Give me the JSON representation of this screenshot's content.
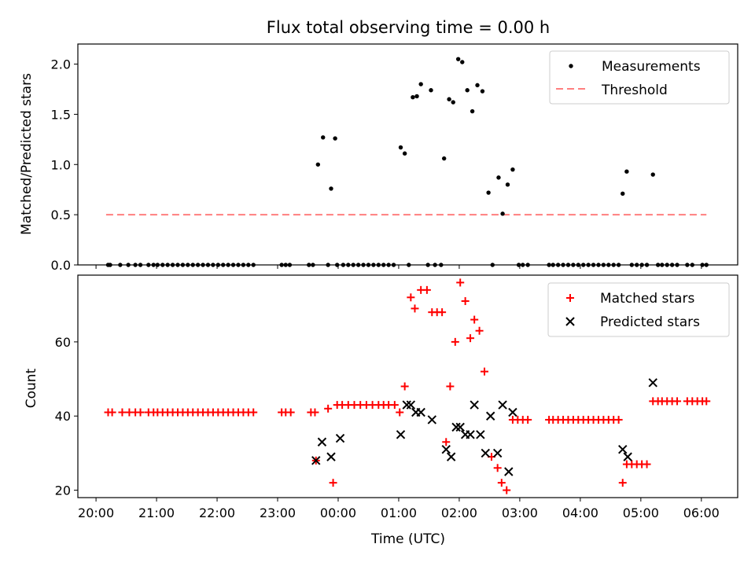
{
  "colors": {
    "measurement": "#000000",
    "threshold": "#ff7f7f",
    "matched": "#ff0000",
    "predicted": "#000000"
  },
  "chart_data": [
    {
      "type": "scatter",
      "title": "Flux total observing time = 0.00 h",
      "xlabel": "",
      "ylabel": "Matched/Predicted stars",
      "xlim": [
        "20:00",
        "06:30"
      ],
      "ylim": [
        0,
        2.2
      ],
      "yticks": [
        0.0,
        0.5,
        1.0,
        1.5,
        2.0
      ],
      "ytick_labels": [
        "0.0",
        "0.5",
        "1.0",
        "1.5",
        "2.0"
      ],
      "legend_position": "top-right",
      "legend": [
        "Measurements",
        "Threshold"
      ],
      "threshold": {
        "value": 0.5,
        "x_start": "20:10",
        "x_end": "06:05"
      },
      "series": [
        {
          "name": "Measurements",
          "points": [
            [
              "20:12",
              0
            ],
            [
              "20:14",
              0
            ],
            [
              "20:24",
              0
            ],
            [
              "20:32",
              0
            ],
            [
              "20:39",
              0
            ],
            [
              "20:44",
              0
            ],
            [
              "20:52",
              0
            ],
            [
              "20:57",
              0
            ],
            [
              "21:01",
              0
            ],
            [
              "21:06",
              0
            ],
            [
              "21:11",
              0
            ],
            [
              "21:16",
              0
            ],
            [
              "21:21",
              0
            ],
            [
              "21:26",
              0
            ],
            [
              "21:31",
              0
            ],
            [
              "21:36",
              0
            ],
            [
              "21:41",
              0
            ],
            [
              "21:46",
              0
            ],
            [
              "21:51",
              0
            ],
            [
              "21:56",
              0
            ],
            [
              "22:01",
              0
            ],
            [
              "22:06",
              0
            ],
            [
              "22:11",
              0
            ],
            [
              "22:16",
              0
            ],
            [
              "22:21",
              0
            ],
            [
              "22:26",
              0
            ],
            [
              "22:31",
              0
            ],
            [
              "22:36",
              0
            ],
            [
              "23:04",
              0
            ],
            [
              "23:08",
              0
            ],
            [
              "23:12",
              0
            ],
            [
              "23:31",
              0
            ],
            [
              "23:35",
              0
            ],
            [
              "23:40",
              1.0
            ],
            [
              "23:45",
              1.27
            ],
            [
              "23:50",
              0
            ],
            [
              "23:53",
              0.76
            ],
            [
              "23:57",
              1.26
            ],
            [
              "23:59",
              0
            ],
            [
              "00:05",
              0
            ],
            [
              "00:10",
              0
            ],
            [
              "00:15",
              0
            ],
            [
              "00:20",
              0
            ],
            [
              "00:25",
              0
            ],
            [
              "00:30",
              0
            ],
            [
              "00:35",
              0
            ],
            [
              "00:40",
              0
            ],
            [
              "00:45",
              0
            ],
            [
              "00:50",
              0
            ],
            [
              "00:55",
              0
            ],
            [
              "01:02",
              1.17
            ],
            [
              "01:06",
              1.11
            ],
            [
              "01:10",
              0
            ],
            [
              "01:14",
              1.67
            ],
            [
              "01:18",
              1.68
            ],
            [
              "01:22",
              1.8
            ],
            [
              "01:29",
              0
            ],
            [
              "01:32",
              1.74
            ],
            [
              "01:36",
              0
            ],
            [
              "01:42",
              0
            ],
            [
              "01:45",
              1.06
            ],
            [
              "01:50",
              1.65
            ],
            [
              "01:54",
              1.62
            ],
            [
              "01:59",
              2.05
            ],
            [
              "02:03",
              2.02
            ],
            [
              "02:08",
              1.74
            ],
            [
              "02:13",
              1.53
            ],
            [
              "02:18",
              1.79
            ],
            [
              "02:23",
              1.73
            ],
            [
              "02:29",
              0.72
            ],
            [
              "02:33",
              0
            ],
            [
              "02:39",
              0.87
            ],
            [
              "02:43",
              0.51
            ],
            [
              "02:48",
              0.8
            ],
            [
              "02:53",
              0.95
            ],
            [
              "02:59",
              0
            ],
            [
              "03:03",
              0
            ],
            [
              "03:08",
              0
            ],
            [
              "03:29",
              0
            ],
            [
              "03:33",
              0
            ],
            [
              "03:38",
              0
            ],
            [
              "03:43",
              0
            ],
            [
              "03:48",
              0
            ],
            [
              "03:53",
              0
            ],
            [
              "03:58",
              0
            ],
            [
              "04:03",
              0
            ],
            [
              "04:08",
              0
            ],
            [
              "04:13",
              0
            ],
            [
              "04:18",
              0
            ],
            [
              "04:23",
              0
            ],
            [
              "04:28",
              0
            ],
            [
              "04:33",
              0
            ],
            [
              "04:38",
              0
            ],
            [
              "04:42",
              0.71
            ],
            [
              "04:46",
              0.93
            ],
            [
              "04:51",
              0
            ],
            [
              "04:56",
              0
            ],
            [
              "05:01",
              0
            ],
            [
              "05:06",
              0
            ],
            [
              "05:12",
              0.9
            ],
            [
              "05:17",
              0
            ],
            [
              "05:21",
              0
            ],
            [
              "05:26",
              0
            ],
            [
              "05:31",
              0
            ],
            [
              "05:36",
              0
            ],
            [
              "05:46",
              0
            ],
            [
              "05:51",
              0
            ],
            [
              "06:01",
              0
            ],
            [
              "06:05",
              0
            ]
          ]
        }
      ]
    },
    {
      "type": "scatter",
      "title": "",
      "xlabel": "Time (UTC)",
      "ylabel": "Count",
      "xlim": [
        "20:00",
        "06:30"
      ],
      "ylim": [
        18,
        78
      ],
      "yticks": [
        20,
        40,
        60
      ],
      "ytick_labels": [
        "20",
        "40",
        "60"
      ],
      "xticks": [
        "20:00",
        "21:00",
        "22:00",
        "23:00",
        "00:00",
        "01:00",
        "02:00",
        "03:00",
        "04:00",
        "05:00",
        "06:00"
      ],
      "legend_position": "top-right",
      "legend": [
        "Matched stars",
        "Predicted stars"
      ],
      "series": [
        {
          "name": "Matched stars",
          "points": [
            [
              "20:12",
              41
            ],
            [
              "20:16",
              41
            ],
            [
              "20:26",
              41
            ],
            [
              "20:33",
              41
            ],
            [
              "20:39",
              41
            ],
            [
              "20:44",
              41
            ],
            [
              "20:52",
              41
            ],
            [
              "20:57",
              41
            ],
            [
              "21:01",
              41
            ],
            [
              "21:06",
              41
            ],
            [
              "21:11",
              41
            ],
            [
              "21:16",
              41
            ],
            [
              "21:21",
              41
            ],
            [
              "21:26",
              41
            ],
            [
              "21:31",
              41
            ],
            [
              "21:36",
              41
            ],
            [
              "21:41",
              41
            ],
            [
              "21:46",
              41
            ],
            [
              "21:51",
              41
            ],
            [
              "21:56",
              41
            ],
            [
              "22:01",
              41
            ],
            [
              "22:06",
              41
            ],
            [
              "22:11",
              41
            ],
            [
              "22:16",
              41
            ],
            [
              "22:21",
              41
            ],
            [
              "22:26",
              41
            ],
            [
              "22:31",
              41
            ],
            [
              "22:36",
              41
            ],
            [
              "23:04",
              41
            ],
            [
              "23:08",
              41
            ],
            [
              "23:13",
              41
            ],
            [
              "23:33",
              41
            ],
            [
              "23:37",
              41
            ],
            [
              "23:38",
              28
            ],
            [
              "23:50",
              42
            ],
            [
              "23:55",
              22
            ],
            [
              "23:59",
              43
            ],
            [
              "00:04",
              43
            ],
            [
              "00:10",
              43
            ],
            [
              "00:16",
              43
            ],
            [
              "00:22",
              43
            ],
            [
              "00:28",
              43
            ],
            [
              "00:34",
              43
            ],
            [
              "00:40",
              43
            ],
            [
              "00:45",
              43
            ],
            [
              "00:50",
              43
            ],
            [
              "00:56",
              43
            ],
            [
              "01:01",
              41
            ],
            [
              "01:06",
              48
            ],
            [
              "01:12",
              72
            ],
            [
              "01:16",
              69
            ],
            [
              "01:22",
              74
            ],
            [
              "01:28",
              74
            ],
            [
              "01:33",
              68
            ],
            [
              "01:38",
              68
            ],
            [
              "01:43",
              68
            ],
            [
              "01:47",
              33
            ],
            [
              "01:51",
              48
            ],
            [
              "01:56",
              60
            ],
            [
              "02:01",
              76
            ],
            [
              "02:06",
              71
            ],
            [
              "02:11",
              61
            ],
            [
              "02:15",
              66
            ],
            [
              "02:20",
              63
            ],
            [
              "02:25",
              52
            ],
            [
              "02:32",
              29
            ],
            [
              "02:38",
              26
            ],
            [
              "02:42",
              22
            ],
            [
              "02:47",
              20
            ],
            [
              "02:53",
              39
            ],
            [
              "02:58",
              39
            ],
            [
              "03:03",
              39
            ],
            [
              "03:08",
              39
            ],
            [
              "03:29",
              39
            ],
            [
              "03:33",
              39
            ],
            [
              "03:38",
              39
            ],
            [
              "03:43",
              39
            ],
            [
              "03:48",
              39
            ],
            [
              "03:53",
              39
            ],
            [
              "03:58",
              39
            ],
            [
              "04:03",
              39
            ],
            [
              "04:08",
              39
            ],
            [
              "04:13",
              39
            ],
            [
              "04:18",
              39
            ],
            [
              "04:23",
              39
            ],
            [
              "04:28",
              39
            ],
            [
              "04:33",
              39
            ],
            [
              "04:38",
              39
            ],
            [
              "04:42",
              22
            ],
            [
              "04:46",
              27
            ],
            [
              "04:51",
              27
            ],
            [
              "04:56",
              27
            ],
            [
              "05:01",
              27
            ],
            [
              "05:06",
              27
            ],
            [
              "05:12",
              44
            ],
            [
              "05:17",
              44
            ],
            [
              "05:21",
              44
            ],
            [
              "05:26",
              44
            ],
            [
              "05:31",
              44
            ],
            [
              "05:36",
              44
            ],
            [
              "05:46",
              44
            ],
            [
              "05:51",
              44
            ],
            [
              "05:56",
              44
            ],
            [
              "06:01",
              44
            ],
            [
              "06:05",
              44
            ]
          ]
        },
        {
          "name": "Predicted stars",
          "points": [
            [
              "23:38",
              28
            ],
            [
              "23:44",
              33
            ],
            [
              "23:53",
              29
            ],
            [
              "00:02",
              34
            ],
            [
              "01:02",
              35
            ],
            [
              "01:08",
              43
            ],
            [
              "01:12",
              43
            ],
            [
              "01:17",
              41
            ],
            [
              "01:22",
              41
            ],
            [
              "01:33",
              39
            ],
            [
              "01:47",
              31
            ],
            [
              "01:52",
              29
            ],
            [
              "01:57",
              37
            ],
            [
              "02:01",
              37
            ],
            [
              "02:06",
              35
            ],
            [
              "02:11",
              35
            ],
            [
              "02:15",
              43
            ],
            [
              "02:21",
              35
            ],
            [
              "02:26",
              30
            ],
            [
              "02:31",
              40
            ],
            [
              "02:38",
              30
            ],
            [
              "02:43",
              43
            ],
            [
              "02:49",
              25
            ],
            [
              "02:53",
              41
            ],
            [
              "04:42",
              31
            ],
            [
              "04:47",
              29
            ],
            [
              "05:12",
              49
            ]
          ]
        }
      ]
    }
  ]
}
